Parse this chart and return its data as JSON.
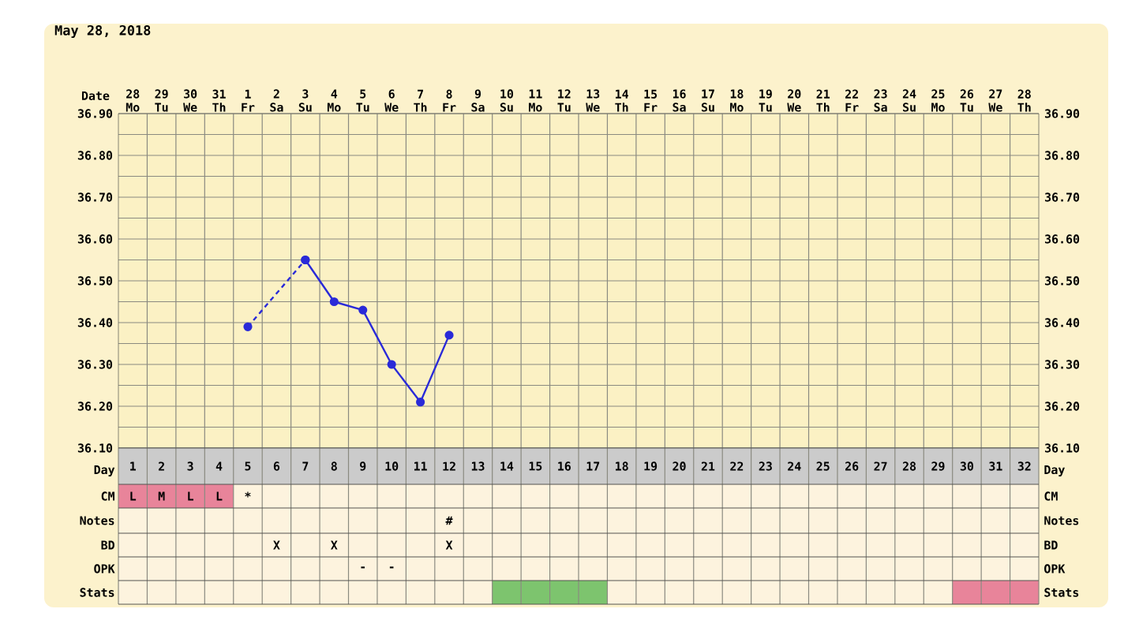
{
  "chart_data": [
    {
      "type": "line",
      "title": "May 28, 2018",
      "xlabel": "Date",
      "categories": [
        "28 Mo",
        "29 Tu",
        "30 We",
        "31 Th",
        "1 Fr",
        "2 Sa",
        "3 Su",
        "4 Mo",
        "5 Tu",
        "6 We",
        "7 Th",
        "8 Fr",
        "9 Sa",
        "10 Su",
        "11 Mo",
        "12 Tu",
        "13 We",
        "14 Th",
        "15 Fr",
        "16 Sa",
        "17 Su",
        "18 Mo",
        "19 Tu",
        "20 We",
        "21 Th",
        "22 Fr",
        "23 Sa",
        "24 Su",
        "25 Mo",
        "26 Tu",
        "27 We",
        "28 Th"
      ],
      "series": [
        {
          "color": "#2a2ad8",
          "values": [
            null,
            null,
            null,
            null,
            null,
            null,
            36.55,
            36.45,
            36.43,
            36.3,
            36.21,
            36.37,
            null,
            null,
            null,
            null,
            null,
            null,
            null,
            null,
            null,
            null,
            null,
            null,
            null,
            null,
            null,
            null,
            null,
            null,
            null,
            null
          ]
        },
        {
          "color": "#2a2ad8",
          "line_style": "dashed",
          "values": [
            null,
            null,
            null,
            null,
            36.39,
            null,
            36.55,
            null,
            null,
            null,
            null,
            null,
            null,
            null,
            null,
            null,
            null,
            null,
            null,
            null,
            null,
            null,
            null,
            null,
            null,
            null,
            null,
            null,
            null,
            null,
            null,
            null
          ]
        }
      ],
      "ylim": [
        36.1,
        36.9
      ],
      "yticks": [
        {
          "value": 36.1,
          "label": "36.10"
        },
        {
          "value": 36.2,
          "label": "36.20"
        },
        {
          "value": 36.3,
          "label": "36.30"
        },
        {
          "value": 36.4,
          "label": "36.40"
        },
        {
          "value": 36.5,
          "label": "36.50"
        },
        {
          "value": 36.6,
          "label": "36.60"
        },
        {
          "value": 36.7,
          "label": "36.70"
        },
        {
          "value": 36.8,
          "label": "36.80"
        },
        {
          "value": 36.9,
          "label": "36.90"
        }
      ],
      "y2lim": [
        36.1,
        36.9
      ],
      "y2ticks": [
        {
          "value": 36.1,
          "label": "36.10"
        },
        {
          "value": 36.2,
          "label": "36.20"
        },
        {
          "value": 36.3,
          "label": "36.30"
        },
        {
          "value": 36.4,
          "label": "36.40"
        },
        {
          "value": 36.5,
          "label": "36.50"
        },
        {
          "value": 36.6,
          "label": "36.60"
        },
        {
          "value": 36.7,
          "label": "36.70"
        },
        {
          "value": 36.8,
          "label": "36.80"
        },
        {
          "value": 36.9,
          "label": "36.90"
        }
      ],
      "grid": true,
      "marker": "circle",
      "line_style": "solid"
    },
    {
      "type": "heatmap",
      "xlabel": "Day",
      "categories": [
        "1",
        "2",
        "3",
        "4",
        "5",
        "6",
        "7",
        "8",
        "9",
        "10",
        "11",
        "12",
        "13",
        "14",
        "15",
        "16",
        "17",
        "18",
        "19",
        "20",
        "21",
        "22",
        "23",
        "24",
        "25",
        "26",
        "27",
        "28",
        "29",
        "30",
        "31",
        "32"
      ],
      "y_categories": [
        "CM",
        "Notes",
        "BD",
        "OPK",
        "Stats"
      ],
      "y2_categories": [
        "CM",
        "Notes",
        "BD",
        "OPK",
        "Stats"
      ],
      "cells": [
        [
          null,
          null,
          null,
          null,
          null,
          null,
          null,
          null,
          null,
          null,
          null,
          null,
          null,
          null,
          null,
          null,
          null,
          null,
          null,
          null,
          null,
          null,
          null,
          null,
          null,
          null,
          null,
          null,
          null,
          null,
          null,
          null
        ],
        [
          null,
          null,
          null,
          null,
          null,
          null,
          null,
          null,
          null,
          null,
          null,
          null,
          null,
          null,
          null,
          null,
          null,
          null,
          null,
          null,
          null,
          null,
          null,
          null,
          null,
          null,
          null,
          null,
          null,
          null,
          null,
          null
        ],
        [
          null,
          null,
          null,
          null,
          null,
          null,
          null,
          null,
          null,
          null,
          null,
          null,
          null,
          null,
          null,
          null,
          null,
          null,
          null,
          null,
          null,
          null,
          null,
          null,
          null,
          null,
          null,
          null,
          null,
          null,
          null,
          null
        ],
        [
          null,
          null,
          null,
          null,
          null,
          null,
          null,
          null,
          null,
          null,
          null,
          null,
          null,
          null,
          null,
          null,
          null,
          null,
          null,
          null,
          null,
          null,
          null,
          null,
          null,
          null,
          null,
          null,
          null,
          null,
          null,
          null
        ],
        [
          null,
          null,
          null,
          null,
          null,
          null,
          null,
          null,
          null,
          null,
          null,
          null,
          null,
          null,
          null,
          null,
          null,
          null,
          null,
          null,
          null,
          null,
          null,
          null,
          null,
          null,
          null,
          null,
          null,
          null,
          null,
          null
        ]
      ],
      "cell_labels": [
        [
          "L",
          "M",
          "L",
          "L",
          "*",
          null,
          null,
          null,
          null,
          null,
          null,
          null,
          null,
          null,
          null,
          null,
          null,
          null,
          null,
          null,
          null,
          null,
          null,
          null,
          null,
          null,
          null,
          null,
          null,
          null,
          null,
          null
        ],
        [
          null,
          null,
          null,
          null,
          null,
          null,
          null,
          null,
          null,
          null,
          null,
          "#",
          null,
          null,
          null,
          null,
          null,
          null,
          null,
          null,
          null,
          null,
          null,
          null,
          null,
          null,
          null,
          null,
          null,
          null,
          null,
          null
        ],
        [
          null,
          null,
          null,
          null,
          null,
          "X",
          null,
          "X",
          null,
          null,
          null,
          "X",
          null,
          null,
          null,
          null,
          null,
          null,
          null,
          null,
          null,
          null,
          null,
          null,
          null,
          null,
          null,
          null,
          null,
          null,
          null,
          null
        ],
        [
          null,
          null,
          null,
          null,
          null,
          null,
          null,
          null,
          "-",
          "-",
          null,
          null,
          null,
          null,
          null,
          null,
          null,
          null,
          null,
          null,
          null,
          null,
          null,
          null,
          null,
          null,
          null,
          null,
          null,
          null,
          null,
          null
        ],
        [
          null,
          null,
          null,
          null,
          null,
          null,
          null,
          null,
          null,
          null,
          null,
          null,
          null,
          null,
          null,
          null,
          null,
          null,
          null,
          null,
          null,
          null,
          null,
          null,
          null,
          null,
          null,
          null,
          null,
          null,
          null,
          null
        ]
      ],
      "colors": [
        [
          "#e8849a",
          "#e8849a",
          "#e8849a",
          "#e8849a",
          null,
          null,
          null,
          null,
          null,
          null,
          null,
          null,
          null,
          null,
          null,
          null,
          null,
          null,
          null,
          null,
          null,
          null,
          null,
          null,
          null,
          null,
          null,
          null,
          null,
          null,
          null,
          null
        ],
        [
          null,
          null,
          null,
          null,
          null,
          null,
          null,
          null,
          null,
          null,
          null,
          null,
          null,
          null,
          null,
          null,
          null,
          null,
          null,
          null,
          null,
          null,
          null,
          null,
          null,
          null,
          null,
          null,
          null,
          null,
          null,
          null
        ],
        [
          null,
          null,
          null,
          null,
          null,
          null,
          null,
          null,
          null,
          null,
          null,
          null,
          null,
          null,
          null,
          null,
          null,
          null,
          null,
          null,
          null,
          null,
          null,
          null,
          null,
          null,
          null,
          null,
          null,
          null,
          null,
          null
        ],
        [
          null,
          null,
          null,
          null,
          null,
          null,
          null,
          null,
          null,
          null,
          null,
          null,
          null,
          null,
          null,
          null,
          null,
          null,
          null,
          null,
          null,
          null,
          null,
          null,
          null,
          null,
          null,
          null,
          null,
          null,
          null,
          null
        ],
        [
          null,
          null,
          null,
          null,
          null,
          null,
          null,
          null,
          null,
          null,
          null,
          null,
          null,
          "#7dc46e",
          "#7dc46e",
          "#7dc46e",
          "#7dc46e",
          null,
          null,
          null,
          null,
          null,
          null,
          null,
          null,
          null,
          null,
          null,
          null,
          "#e8849a",
          "#e8849a",
          "#e8849a"
        ]
      ]
    }
  ]
}
